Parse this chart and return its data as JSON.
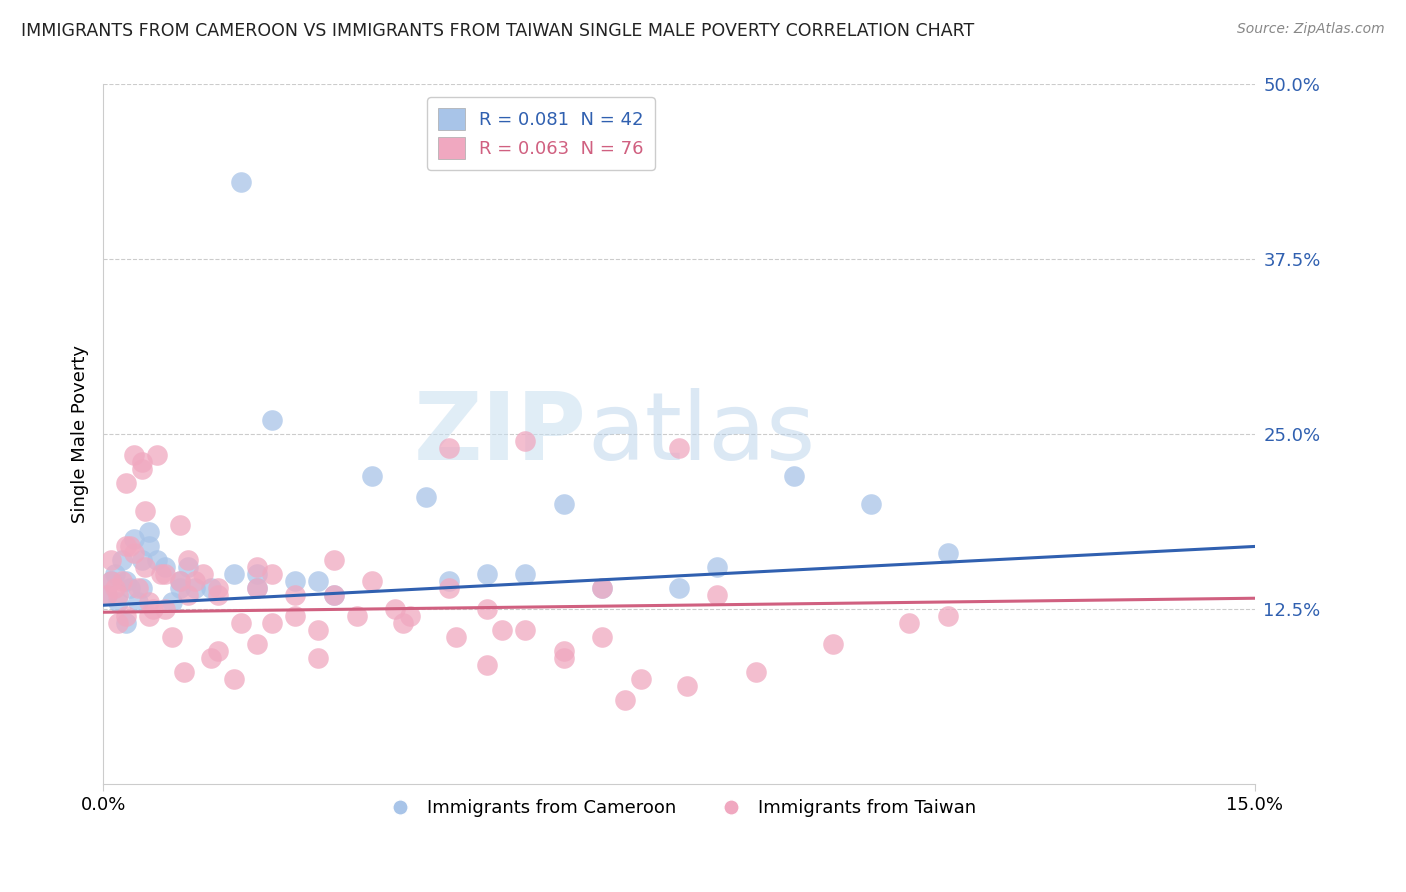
{
  "title": "IMMIGRANTS FROM CAMEROON VS IMMIGRANTS FROM TAIWAN SINGLE MALE POVERTY CORRELATION CHART",
  "source": "Source: ZipAtlas.com",
  "ylabel": "Single Male Poverty",
  "xlim": [
    0.0,
    15.0
  ],
  "ylim": [
    0.0,
    50.0
  ],
  "xtick_labels": [
    "0.0%",
    "15.0%"
  ],
  "yticks": [
    12.5,
    25.0,
    37.5,
    50.0
  ],
  "ytick_labels": [
    "12.5%",
    "25.0%",
    "37.5%",
    "50.0%"
  ],
  "legend_r1": "R = 0.081",
  "legend_n1": "N = 42",
  "legend_r2": "R = 0.063",
  "legend_n2": "N = 76",
  "series1_label": "Immigrants from Cameroon",
  "series2_label": "Immigrants from Taiwan",
  "series1_color": "#a8c4e8",
  "series2_color": "#f0a8c0",
  "series1_edge_color": "#7aaad8",
  "series2_edge_color": "#e07898",
  "series1_line_color": "#3060b0",
  "series2_line_color": "#d06080",
  "watermark_zip": "ZIP",
  "watermark_atlas": "atlas",
  "trend1_x0": 0.0,
  "trend1_y0": 12.8,
  "trend1_x1": 15.0,
  "trend1_y1": 17.0,
  "trend2_x0": 0.0,
  "trend2_y0": 12.3,
  "trend2_x1": 15.0,
  "trend2_y1": 13.3,
  "scatter1_x": [
    0.05,
    0.1,
    0.15,
    0.2,
    0.25,
    0.3,
    0.35,
    0.4,
    0.5,
    0.6,
    0.7,
    0.8,
    0.9,
    1.0,
    1.1,
    1.2,
    1.4,
    1.8,
    2.0,
    2.2,
    2.8,
    3.5,
    4.2,
    5.0,
    6.0,
    7.5,
    9.0,
    10.0,
    0.3,
    0.5,
    0.6,
    1.0,
    2.0,
    3.0,
    4.5,
    5.5,
    6.5,
    8.0,
    11.0,
    1.7,
    2.5,
    0.45
  ],
  "scatter1_y": [
    13.5,
    14.5,
    15.0,
    13.0,
    16.0,
    11.5,
    14.0,
    17.5,
    14.0,
    18.0,
    16.0,
    15.5,
    13.0,
    14.5,
    15.5,
    14.0,
    14.0,
    43.0,
    15.0,
    26.0,
    14.5,
    22.0,
    20.5,
    15.0,
    20.0,
    14.0,
    22.0,
    20.0,
    14.5,
    16.0,
    17.0,
    14.0,
    14.0,
    13.5,
    14.5,
    15.0,
    14.0,
    15.5,
    16.5,
    15.0,
    14.5,
    13.0
  ],
  "scatter2_x": [
    0.05,
    0.1,
    0.15,
    0.2,
    0.25,
    0.3,
    0.35,
    0.4,
    0.45,
    0.5,
    0.55,
    0.6,
    0.65,
    0.7,
    0.75,
    0.8,
    0.9,
    1.0,
    1.1,
    1.2,
    1.3,
    1.5,
    1.8,
    2.0,
    2.2,
    2.5,
    3.0,
    3.5,
    4.0,
    4.5,
    5.0,
    5.5,
    6.0,
    6.5,
    7.0,
    0.1,
    0.2,
    0.3,
    0.4,
    0.5,
    1.0,
    1.5,
    2.0,
    2.5,
    3.0,
    3.8,
    4.5,
    5.5,
    6.5,
    7.5,
    8.0,
    0.3,
    0.6,
    0.8,
    1.1,
    1.4,
    1.7,
    2.2,
    2.8,
    3.3,
    3.9,
    4.6,
    5.2,
    6.0,
    6.8,
    7.6,
    8.5,
    9.5,
    10.5,
    11.0,
    0.55,
    1.05,
    1.5,
    2.0,
    2.8,
    5.0
  ],
  "scatter2_y": [
    13.5,
    16.0,
    14.0,
    11.5,
    14.5,
    12.0,
    17.0,
    16.5,
    14.0,
    22.5,
    15.5,
    13.0,
    12.5,
    23.5,
    15.0,
    12.5,
    10.5,
    18.5,
    13.5,
    14.5,
    15.0,
    14.0,
    11.5,
    15.5,
    15.0,
    13.5,
    16.0,
    14.5,
    12.0,
    14.0,
    12.5,
    11.0,
    9.5,
    10.5,
    7.5,
    14.5,
    13.5,
    21.5,
    23.5,
    23.0,
    14.5,
    13.5,
    14.0,
    12.0,
    13.5,
    12.5,
    24.0,
    24.5,
    14.0,
    24.0,
    13.5,
    17.0,
    12.0,
    15.0,
    16.0,
    9.0,
    7.5,
    11.5,
    11.0,
    12.0,
    11.5,
    10.5,
    11.0,
    9.0,
    6.0,
    7.0,
    8.0,
    10.0,
    11.5,
    12.0,
    19.5,
    8.0,
    9.5,
    10.0,
    9.0,
    8.5
  ]
}
